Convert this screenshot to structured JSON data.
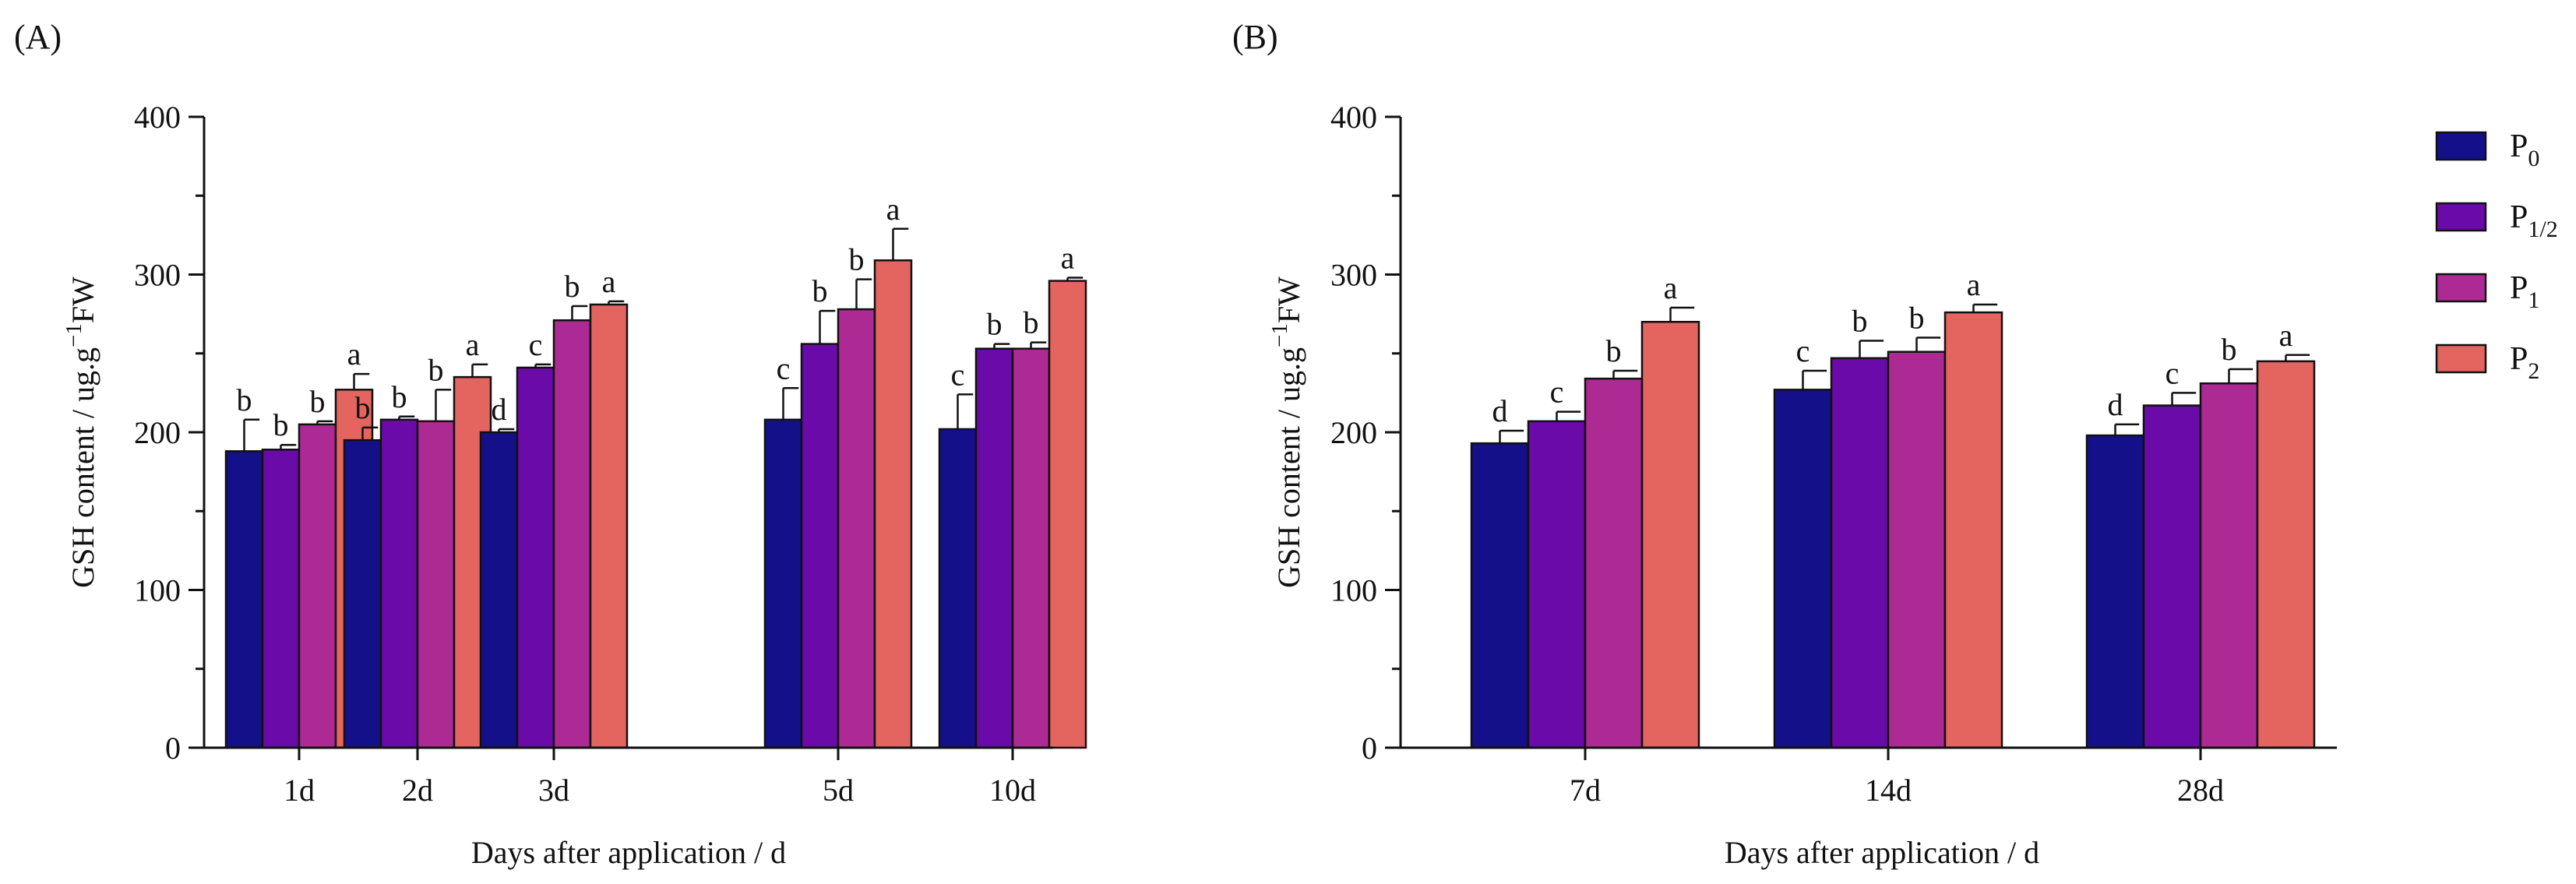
{
  "chart_data": [
    {
      "type": "bar",
      "panel_label": "(A)",
      "ylabel_text": "GSH content / ug.g",
      "ylabel_sup": "−1",
      "ylabel_tail": "FW",
      "xlabel": "Days after application  / d",
      "ylim": [
        0,
        400
      ],
      "yticks": [
        "0",
        "100",
        "200",
        "300",
        "400"
      ],
      "categories": [
        "1d",
        "2d",
        "3d",
        "5d",
        "10d"
      ],
      "series": [
        {
          "name": "P0",
          "values": [
            188,
            195,
            200,
            208,
            202
          ],
          "errors": [
            20,
            8,
            2,
            20,
            22
          ],
          "letters": [
            "b",
            "b",
            "d",
            "c",
            "c"
          ]
        },
        {
          "name": "P1/2",
          "values": [
            189,
            208,
            241,
            256,
            253
          ],
          "errors": [
            3,
            2,
            2,
            21,
            3
          ],
          "letters": [
            "b",
            "b",
            "c",
            "b",
            "b"
          ]
        },
        {
          "name": "P1",
          "values": [
            205,
            207,
            271,
            278,
            253
          ],
          "errors": [
            2,
            20,
            9,
            19,
            4
          ],
          "letters": [
            "b",
            "b",
            "b",
            "b",
            "b"
          ]
        },
        {
          "name": "P2",
          "values": [
            227,
            235,
            281,
            309,
            296
          ],
          "errors": [
            10,
            8,
            2,
            20,
            2
          ],
          "letters": [
            "a",
            "a",
            "a",
            "a",
            "a"
          ]
        }
      ]
    },
    {
      "type": "bar",
      "panel_label": "(B)",
      "ylabel_text": "GSH content / ug.g",
      "ylabel_sup": "−1",
      "ylabel_tail": "FW",
      "xlabel": "Days after application  / d",
      "ylim": [
        0,
        400
      ],
      "yticks": [
        "0",
        "100",
        "200",
        "300",
        "400"
      ],
      "categories": [
        "7d",
        "14d",
        "28d"
      ],
      "series": [
        {
          "name": "P0",
          "values": [
            193,
            227,
            198
          ],
          "errors": [
            8,
            12,
            7
          ],
          "letters": [
            "d",
            "c",
            "d"
          ]
        },
        {
          "name": "P1/2",
          "values": [
            207,
            247,
            217
          ],
          "errors": [
            6,
            11,
            8
          ],
          "letters": [
            "c",
            "b",
            "c"
          ]
        },
        {
          "name": "P1",
          "values": [
            234,
            251,
            231
          ],
          "errors": [
            5,
            9,
            9
          ],
          "letters": [
            "b",
            "b",
            "b"
          ]
        },
        {
          "name": "P2",
          "values": [
            270,
            276,
            245
          ],
          "errors": [
            9,
            5,
            4
          ],
          "letters": [
            "a",
            "a",
            "a"
          ]
        }
      ]
    }
  ],
  "legend": [
    {
      "base": "P",
      "sub": "0",
      "color": "#14108a"
    },
    {
      "base": "P",
      "sub": "1/2",
      "color": "#6a0aa8"
    },
    {
      "base": "P",
      "sub": "1",
      "color": "#ad2a94"
    },
    {
      "base": "P",
      "sub": "2",
      "color": "#e4645f"
    }
  ]
}
